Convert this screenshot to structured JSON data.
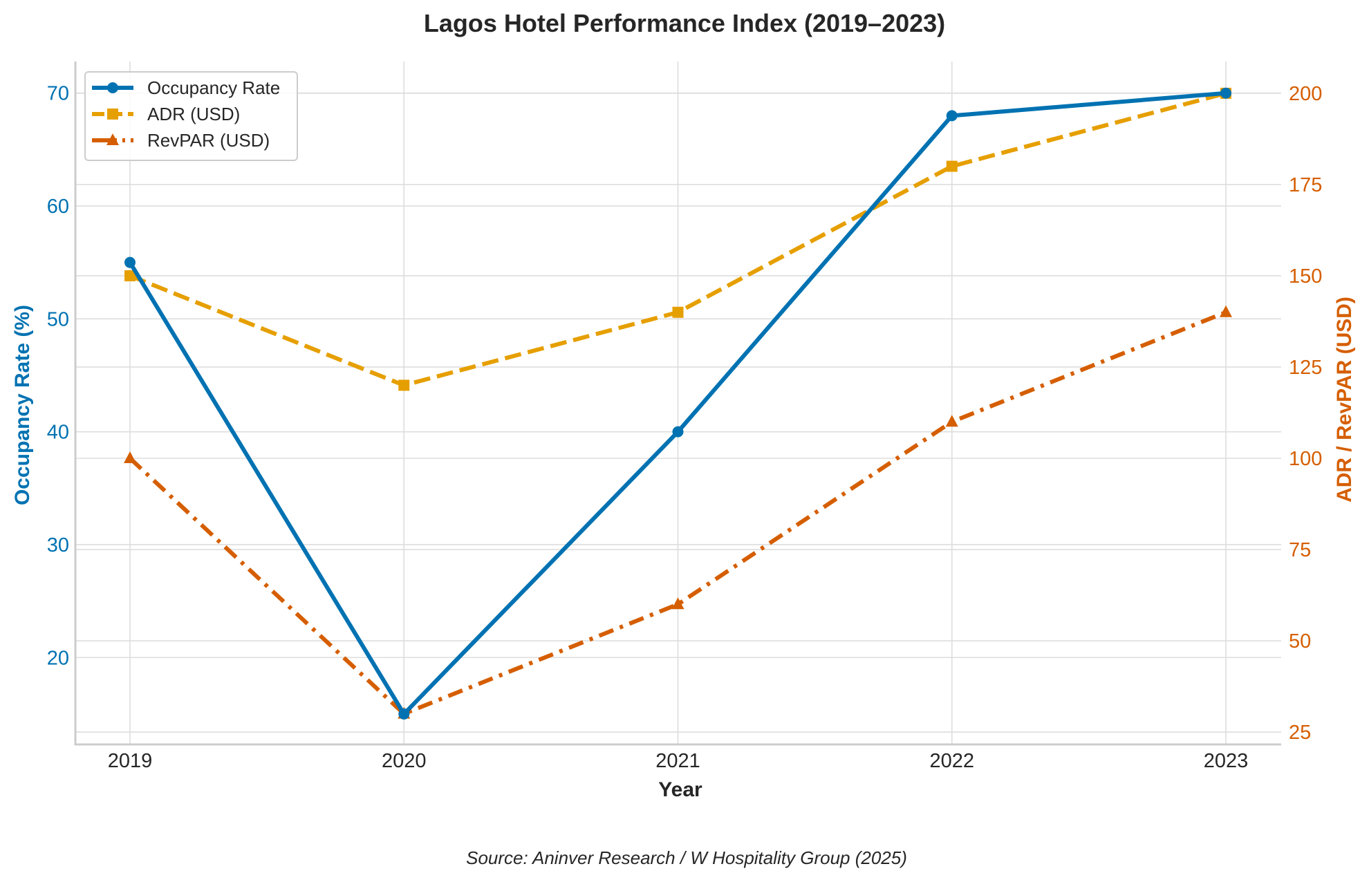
{
  "chart_data": {
    "type": "line",
    "title": "Lagos Hotel Performance Index (2019–2023)",
    "xlabel": "Year",
    "ylabel_left": "Occupancy Rate (%)",
    "ylabel_right": "ADR / RevPAR (USD)",
    "categories": [
      "2019",
      "2020",
      "2021",
      "2022",
      "2023"
    ],
    "series": [
      {
        "name": "Occupancy Rate",
        "axis": "left",
        "values": [
          55,
          15,
          40,
          68,
          70
        ],
        "color": "#0072B2",
        "linestyle": "solid",
        "marker": "circle"
      },
      {
        "name": "ADR (USD)",
        "axis": "right",
        "values": [
          150,
          120,
          140,
          180,
          200
        ],
        "color": "#E69F00",
        "linestyle": "dashed",
        "marker": "square"
      },
      {
        "name": "RevPAR (USD)",
        "axis": "right",
        "values": [
          100,
          30,
          60,
          110,
          140
        ],
        "color": "#D55E00",
        "linestyle": "dashdot",
        "marker": "triangle"
      }
    ],
    "ylim_left": [
      12.3,
      72.8
    ],
    "ylim_right": [
      21.6,
      208.7
    ],
    "yticks_left": [
      20,
      30,
      40,
      50,
      60,
      70
    ],
    "yticks_right": [
      25,
      50,
      75,
      100,
      125,
      150,
      175,
      200
    ],
    "left_axis_color": "#0072B2",
    "right_axis_color": "#D55E00",
    "grid": true,
    "legend_position": "top-left",
    "source_note": "Source: Aninver Research / W Hospitality Group (2025)"
  }
}
